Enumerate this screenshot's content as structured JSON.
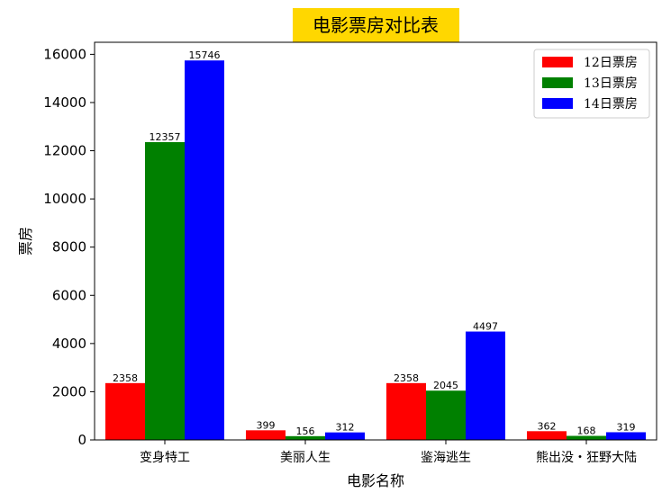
{
  "chart_data": {
    "type": "bar",
    "title": "电影票房对比表",
    "title_background": "#FFD700",
    "xlabel": "电影名称",
    "ylabel": "票房",
    "categories": [
      "变身特工",
      "美丽人生",
      "鉴海逃生",
      "熊出没・狂野大陆"
    ],
    "series": [
      {
        "name": "12日票房",
        "color": "#FF0000",
        "values": [
          2358,
          399,
          2358,
          362
        ]
      },
      {
        "name": "13日票房",
        "color": "#008000",
        "values": [
          12357,
          156,
          2045,
          168
        ]
      },
      {
        "name": "14日票房",
        "color": "#0000FF",
        "values": [
          15746,
          312,
          4497,
          319
        ]
      }
    ],
    "ylim": [
      0,
      16500
    ],
    "yticks": [
      0,
      2000,
      4000,
      6000,
      8000,
      10000,
      12000,
      14000,
      16000
    ],
    "legend": "top-right",
    "grid": false
  }
}
